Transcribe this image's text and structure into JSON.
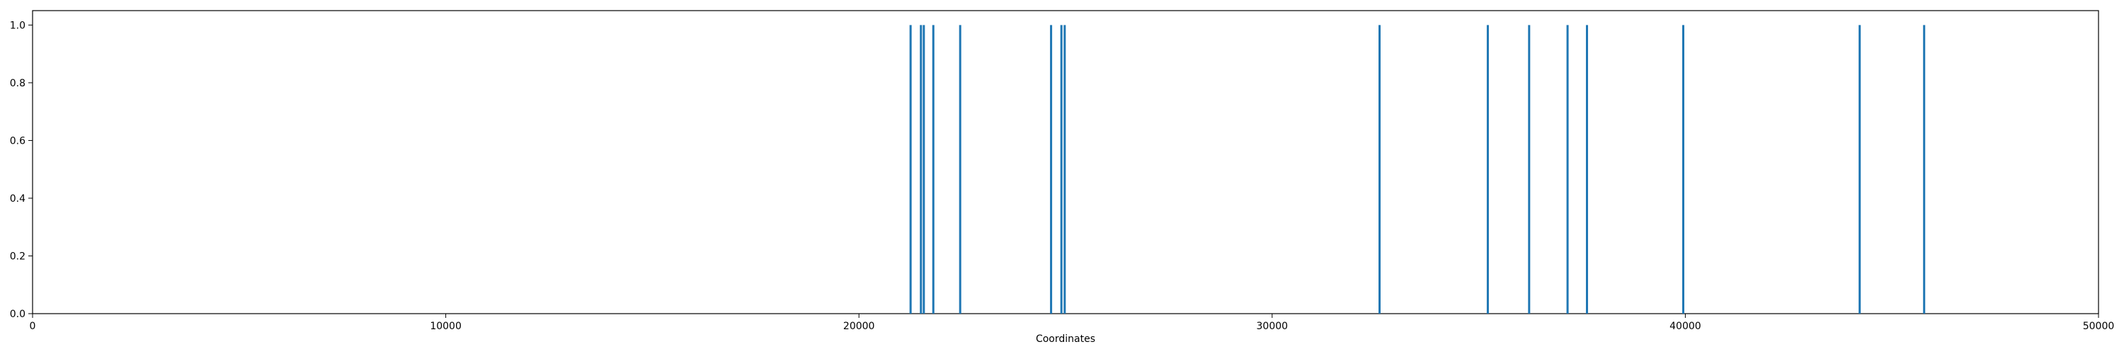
{
  "chart_data": {
    "type": "bar",
    "title": "",
    "xlabel": "Coordinates",
    "ylabel": "",
    "xlim": [
      0,
      50000
    ],
    "ylim": [
      0,
      1.05
    ],
    "x_ticks": [
      0,
      10000,
      20000,
      30000,
      40000,
      50000
    ],
    "x_tick_labels": [
      "0",
      "10000",
      "20000",
      "30000",
      "40000",
      "50000"
    ],
    "y_ticks": [
      0.0,
      0.2,
      0.4,
      0.6,
      0.8,
      1.0
    ],
    "y_tick_labels": [
      "0.0",
      "0.2",
      "0.4",
      "0.6",
      "0.8",
      "1.0"
    ],
    "grid": false,
    "legend": "none",
    "color": "#1f77b4",
    "x": [
      21250,
      21500,
      21570,
      21800,
      22450,
      24650,
      24900,
      24980,
      32600,
      35220,
      36220,
      37150,
      37620,
      39950,
      44220,
      45780
    ],
    "values": [
      1,
      1,
      1,
      1,
      1,
      1,
      1,
      1,
      1,
      1,
      1,
      1,
      1,
      1,
      1,
      1
    ]
  }
}
